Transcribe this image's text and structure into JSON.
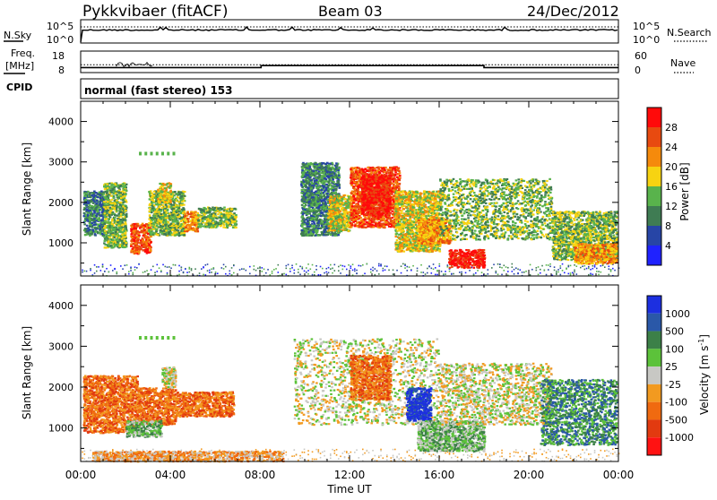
{
  "header": {
    "title": "Pykkvibaer (fitACF)",
    "beam": "Beam 03",
    "date": "24/Dec/2012"
  },
  "nsky_panel": {
    "label": "N.Sky",
    "right_label": "N.Search",
    "left_ticks": [
      "10^5",
      "10^0"
    ],
    "right_ticks": [
      "10^5",
      "10^0"
    ]
  },
  "freq_panel": {
    "label_line1": "Freq.",
    "label_line2": "[MHz]",
    "right_label": "Nave",
    "left_ticks": [
      "18",
      "8"
    ],
    "right_ticks": [
      "60",
      "0"
    ],
    "freq_steps": [
      {
        "t": 0.0,
        "mhz": 9.6
      },
      {
        "t": 8.05,
        "mhz": 9.6
      },
      {
        "t": 8.05,
        "mhz": 11.0
      },
      {
        "t": 18.0,
        "mhz": 11.0
      },
      {
        "t": 18.0,
        "mhz": 9.6
      },
      {
        "t": 24.0,
        "mhz": 9.6
      }
    ],
    "nave_level": 12
  },
  "cpid": {
    "label": "CPID",
    "text": "normal (fast stereo) 153"
  },
  "chart_data": [
    {
      "type": "heatmap",
      "quantity": "Power",
      "ylabel": "Slant Range [km]",
      "ylim": [
        180,
        4500
      ],
      "yticks": [
        "4000",
        "3000",
        "2000",
        "1000"
      ],
      "xlim": [
        0,
        24
      ],
      "colorbar": {
        "label": "Power [dB]",
        "ticks": [
          "28",
          "24",
          "20",
          "16",
          "12",
          "8",
          "4"
        ],
        "colors": [
          "#1f22ff",
          "#2745a6",
          "#3f7c53",
          "#59b34c",
          "#f7d311",
          "#f58a0c",
          "#e84a10",
          "#ff0a0a"
        ]
      },
      "scatter_regions": [
        {
          "t0": 0.1,
          "t1": 1.0,
          "r0": 1200,
          "r1": 2300,
          "level": 2
        },
        {
          "t0": 1.0,
          "t1": 2.0,
          "r0": 900,
          "r1": 2500,
          "level": 3
        },
        {
          "t0": 2.2,
          "t1": 3.1,
          "r0": 750,
          "r1": 1500,
          "level": 6
        },
        {
          "t0": 3.0,
          "t1": 4.6,
          "r0": 1200,
          "r1": 2300,
          "level": 3
        },
        {
          "t0": 4.6,
          "t1": 5.2,
          "r0": 1300,
          "r1": 1800,
          "level": 5
        },
        {
          "t0": 5.2,
          "t1": 6.9,
          "r0": 1400,
          "r1": 1900,
          "level": 3
        },
        {
          "t0": 3.4,
          "t1": 4.0,
          "r0": 2000,
          "r1": 2500,
          "level": 4
        },
        {
          "t0": 9.8,
          "t1": 11.5,
          "r0": 1200,
          "r1": 3000,
          "level": 2
        },
        {
          "t0": 11.0,
          "t1": 12.0,
          "r0": 1300,
          "r1": 2200,
          "level": 4
        },
        {
          "t0": 12.0,
          "t1": 14.2,
          "r0": 1400,
          "r1": 2900,
          "level": 6
        },
        {
          "t0": 12.5,
          "t1": 13.8,
          "r0": 1700,
          "r1": 2700,
          "level": 7
        },
        {
          "t0": 14.0,
          "t1": 16.0,
          "r0": 800,
          "r1": 2300,
          "level": 4
        },
        {
          "t0": 15.0,
          "t1": 16.5,
          "r0": 1000,
          "r1": 1600,
          "level": 5
        },
        {
          "t0": 16.4,
          "t1": 18.0,
          "r0": 400,
          "r1": 850,
          "level": 7
        },
        {
          "t0": 16.0,
          "t1": 21.0,
          "r0": 1100,
          "r1": 2600,
          "level": 3
        },
        {
          "t0": 21.0,
          "t1": 23.9,
          "r0": 600,
          "r1": 1800,
          "level": 3
        },
        {
          "t0": 22.0,
          "t1": 23.9,
          "r0": 500,
          "r1": 1000,
          "level": 5
        }
      ]
    },
    {
      "type": "heatmap",
      "quantity": "Velocity",
      "ylabel": "Slant Range [km]",
      "ylim": [
        180,
        4500
      ],
      "yticks": [
        "4000",
        "3000",
        "2000",
        "1000"
      ],
      "xlim": [
        0,
        24
      ],
      "xticks": [
        "00:00",
        "04:00",
        "08:00",
        "12:00",
        "16:00",
        "20:00",
        "00:00"
      ],
      "xlabel": "Time UT",
      "colorbar": {
        "label_main": "Velocity  [m s",
        "label_sup": "-1",
        "label_end": "]",
        "ticks": [
          "1000",
          "500",
          "100",
          "25",
          "-25",
          "-100",
          "-500",
          "-1000"
        ],
        "colors": [
          "#1c2fe0",
          "#2a58a8",
          "#3c8048",
          "#5cc23a",
          "#c8c8c4",
          "#f29a20",
          "#f06a10",
          "#e23a10",
          "#ff1212"
        ]
      },
      "scatter_regions": [
        {
          "t0": 0.1,
          "t1": 2.5,
          "r0": 900,
          "r1": 2300,
          "level": 6
        },
        {
          "t0": 2.5,
          "t1": 4.2,
          "r0": 1100,
          "r1": 2000,
          "level": 6
        },
        {
          "t0": 4.2,
          "t1": 6.8,
          "r0": 1300,
          "r1": 1900,
          "level": 6
        },
        {
          "t0": 2.0,
          "t1": 3.6,
          "r0": 800,
          "r1": 1200,
          "level": 3
        },
        {
          "t0": 3.6,
          "t1": 4.2,
          "r0": 2000,
          "r1": 2500,
          "level": 4
        },
        {
          "t0": 9.5,
          "t1": 16.0,
          "r0": 1100,
          "r1": 3200,
          "level": 4
        },
        {
          "t0": 12.0,
          "t1": 13.8,
          "r0": 1700,
          "r1": 2800,
          "level": 6
        },
        {
          "t0": 14.5,
          "t1": 15.6,
          "r0": 1200,
          "r1": 2000,
          "level": 0
        },
        {
          "t0": 15.0,
          "t1": 18.0,
          "r0": 450,
          "r1": 1200,
          "level": 3
        },
        {
          "t0": 16.0,
          "t1": 21.0,
          "r0": 1100,
          "r1": 2600,
          "level": 4
        },
        {
          "t0": 20.5,
          "t1": 23.9,
          "r0": 600,
          "r1": 2200,
          "level": 2
        },
        {
          "t0": 0.5,
          "t1": 9.0,
          "r0": 200,
          "r1": 450,
          "level": 5
        }
      ]
    }
  ]
}
